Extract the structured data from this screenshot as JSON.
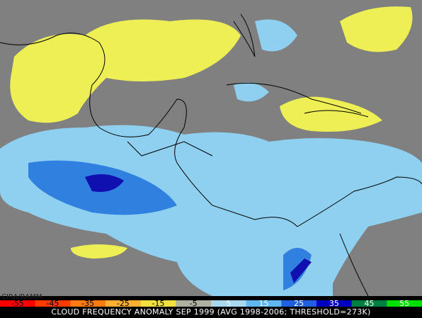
{
  "credit": "CIRA/RAMM",
  "colorbar": {
    "labels": [
      -55,
      -45,
      -35,
      -25,
      -15,
      -5,
      5,
      15,
      25,
      35,
      45,
      55
    ],
    "colors": [
      "#ff0000",
      "#ff3a00",
      "#ff7a10",
      "#ffb030",
      "#f0e040",
      "#b0b0a0",
      "#a8d8f0",
      "#60b8f0",
      "#2060e0",
      "#0000c0",
      "#008040",
      "#00e000"
    ]
  },
  "title": "CLOUD FREQUENCY ANOMALY SEP 1999 (AVG 1998-2006; THRESHOLD=273K)"
}
